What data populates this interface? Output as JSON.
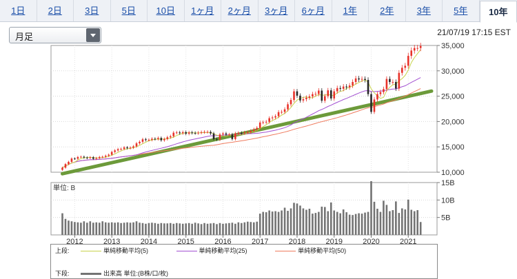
{
  "tabs": [
    "1日",
    "2日",
    "3日",
    "5日",
    "10日",
    "1ヶ月",
    "2ヶ月",
    "3ヶ月",
    "6ヶ月",
    "1年",
    "2年",
    "3年",
    "5年",
    "10年"
  ],
  "active_tab": "10年",
  "period_select": {
    "value": "月足"
  },
  "timestamp": "21/07/19 17:15 EST",
  "colors": {
    "up": "#e8322a",
    "down": "#262626",
    "ma5": "#c8d24a",
    "ma25": "#a24fd1",
    "ma50": "#ef7b5e",
    "trendline": "#6c9a3a",
    "volume": "#737373"
  },
  "legend": {
    "upper_label": "上段:",
    "lower_label": "下段:",
    "ma5": "単純移動平均(5)",
    "ma25": "単純移動平均(25)",
    "ma50": "単純移動平均(50)",
    "volume": "出来高 単位:(B株/口/枚)"
  },
  "chart_data": {
    "type": "candlestick",
    "x_tick_labels": [
      "2012",
      "2013",
      "2014",
      "2015",
      "2016",
      "2017",
      "2018",
      "2019",
      "2020",
      "2021"
    ],
    "price_axis": {
      "ticks": [
        "35,000",
        "30,000",
        "25,000",
        "20,000",
        "15,000",
        "10,000"
      ],
      "ylim": [
        10000,
        35000
      ]
    },
    "volume_axis": {
      "unit_label": "単位: B",
      "ticks": [
        "15B",
        "10B",
        "5B"
      ],
      "ylim": [
        0,
        15
      ]
    },
    "start": {
      "year": 2011,
      "month": 9
    },
    "close": [
      10900,
      11600,
      12050,
      12700,
      12650,
      13000,
      13050,
      12900,
      12800,
      12950,
      12650,
      12800,
      13000,
      13050,
      13250,
      13450,
      14000,
      14300,
      14550,
      14600,
      14900,
      14750,
      14850,
      15100,
      15700,
      16000,
      16500,
      16350,
      16400,
      16600,
      16550,
      16750,
      16300,
      16550,
      16900,
      17100,
      17800,
      17850,
      17700,
      17900,
      17600,
      17850,
      17750,
      17700,
      17800,
      17900,
      17950,
      17950,
      17650,
      16550,
      16450,
      17450,
      17650,
      17450,
      17450,
      16550,
      17650,
      17750,
      17700,
      17850,
      17900,
      18150,
      18450,
      18750,
      19800,
      19850,
      19950,
      20650,
      20800,
      21050,
      21850,
      21900,
      22400,
      23400,
      24250,
      25950,
      25100,
      24150,
      24400,
      24700,
      24950,
      25400,
      25450,
      26100,
      24100,
      25000,
      26150,
      24550,
      25950,
      26600,
      26450,
      26900,
      26750,
      27100,
      27800,
      28500,
      28300,
      28400,
      28200,
      25400,
      21900,
      24350,
      25400,
      25800,
      26400,
      28400,
      27800,
      27800,
      26500,
      29600,
      30600,
      31000,
      32950,
      34000,
      34500,
      34500,
      34900
    ],
    "volume": [
      6.2,
      4.6,
      4.1,
      3.9,
      3.7,
      3.6,
      3.5,
      3.9,
      3.5,
      3.9,
      3.5,
      3.6,
      3.5,
      3.9,
      3.6,
      3.5,
      3.6,
      3.5,
      3.6,
      3.4,
      3.5,
      3.6,
      3.5,
      3.6,
      3.9,
      3.5,
      3.4,
      3.2,
      3.4,
      3.5,
      3.4,
      3.2,
      3.4,
      3.3,
      3.3,
      3.4,
      3.2,
      3.4,
      3.3,
      3.2,
      3.3,
      3.4,
      3.2,
      3.5,
      3.3,
      3.1,
      3.4,
      3.2,
      3.3,
      3.4,
      3.1,
      3.4,
      3.2,
      3.3,
      3.4,
      3.5,
      3.2,
      3.6,
      3.4,
      3.6,
      3.8,
      3.7,
      3.6,
      3.8,
      6.1,
      6.6,
      6.5,
      7.0,
      6.7,
      6.8,
      6.6,
      7.0,
      7.8,
      6.9,
      7.6,
      9.2,
      9.0,
      8.4,
      7.6,
      7.2,
      7.5,
      6.1,
      6.3,
      6.6,
      8.1,
      8.0,
      6.8,
      9.3,
      7.0,
      6.6,
      6.2,
      7.3,
      6.5,
      5.8,
      5.7,
      6.0,
      6.2,
      6.1,
      6.4,
      6.6,
      15.4,
      9.5,
      7.5,
      6.6,
      9.8,
      8.6,
      6.8,
      7.1,
      9.6,
      6.3,
      7.6,
      7.3,
      10.1,
      7.2,
      6.8,
      7.1,
      3.7
    ],
    "series": [
      {
        "name": "単純移動平均(5)"
      },
      {
        "name": "単純移動平均(25)"
      },
      {
        "name": "単純移動平均(50)"
      }
    ],
    "trendline": {
      "from": {
        "date": "2011-09",
        "value": 9700
      },
      "to": {
        "date": "2021-07",
        "value": 26000
      }
    },
    "grid": true
  }
}
